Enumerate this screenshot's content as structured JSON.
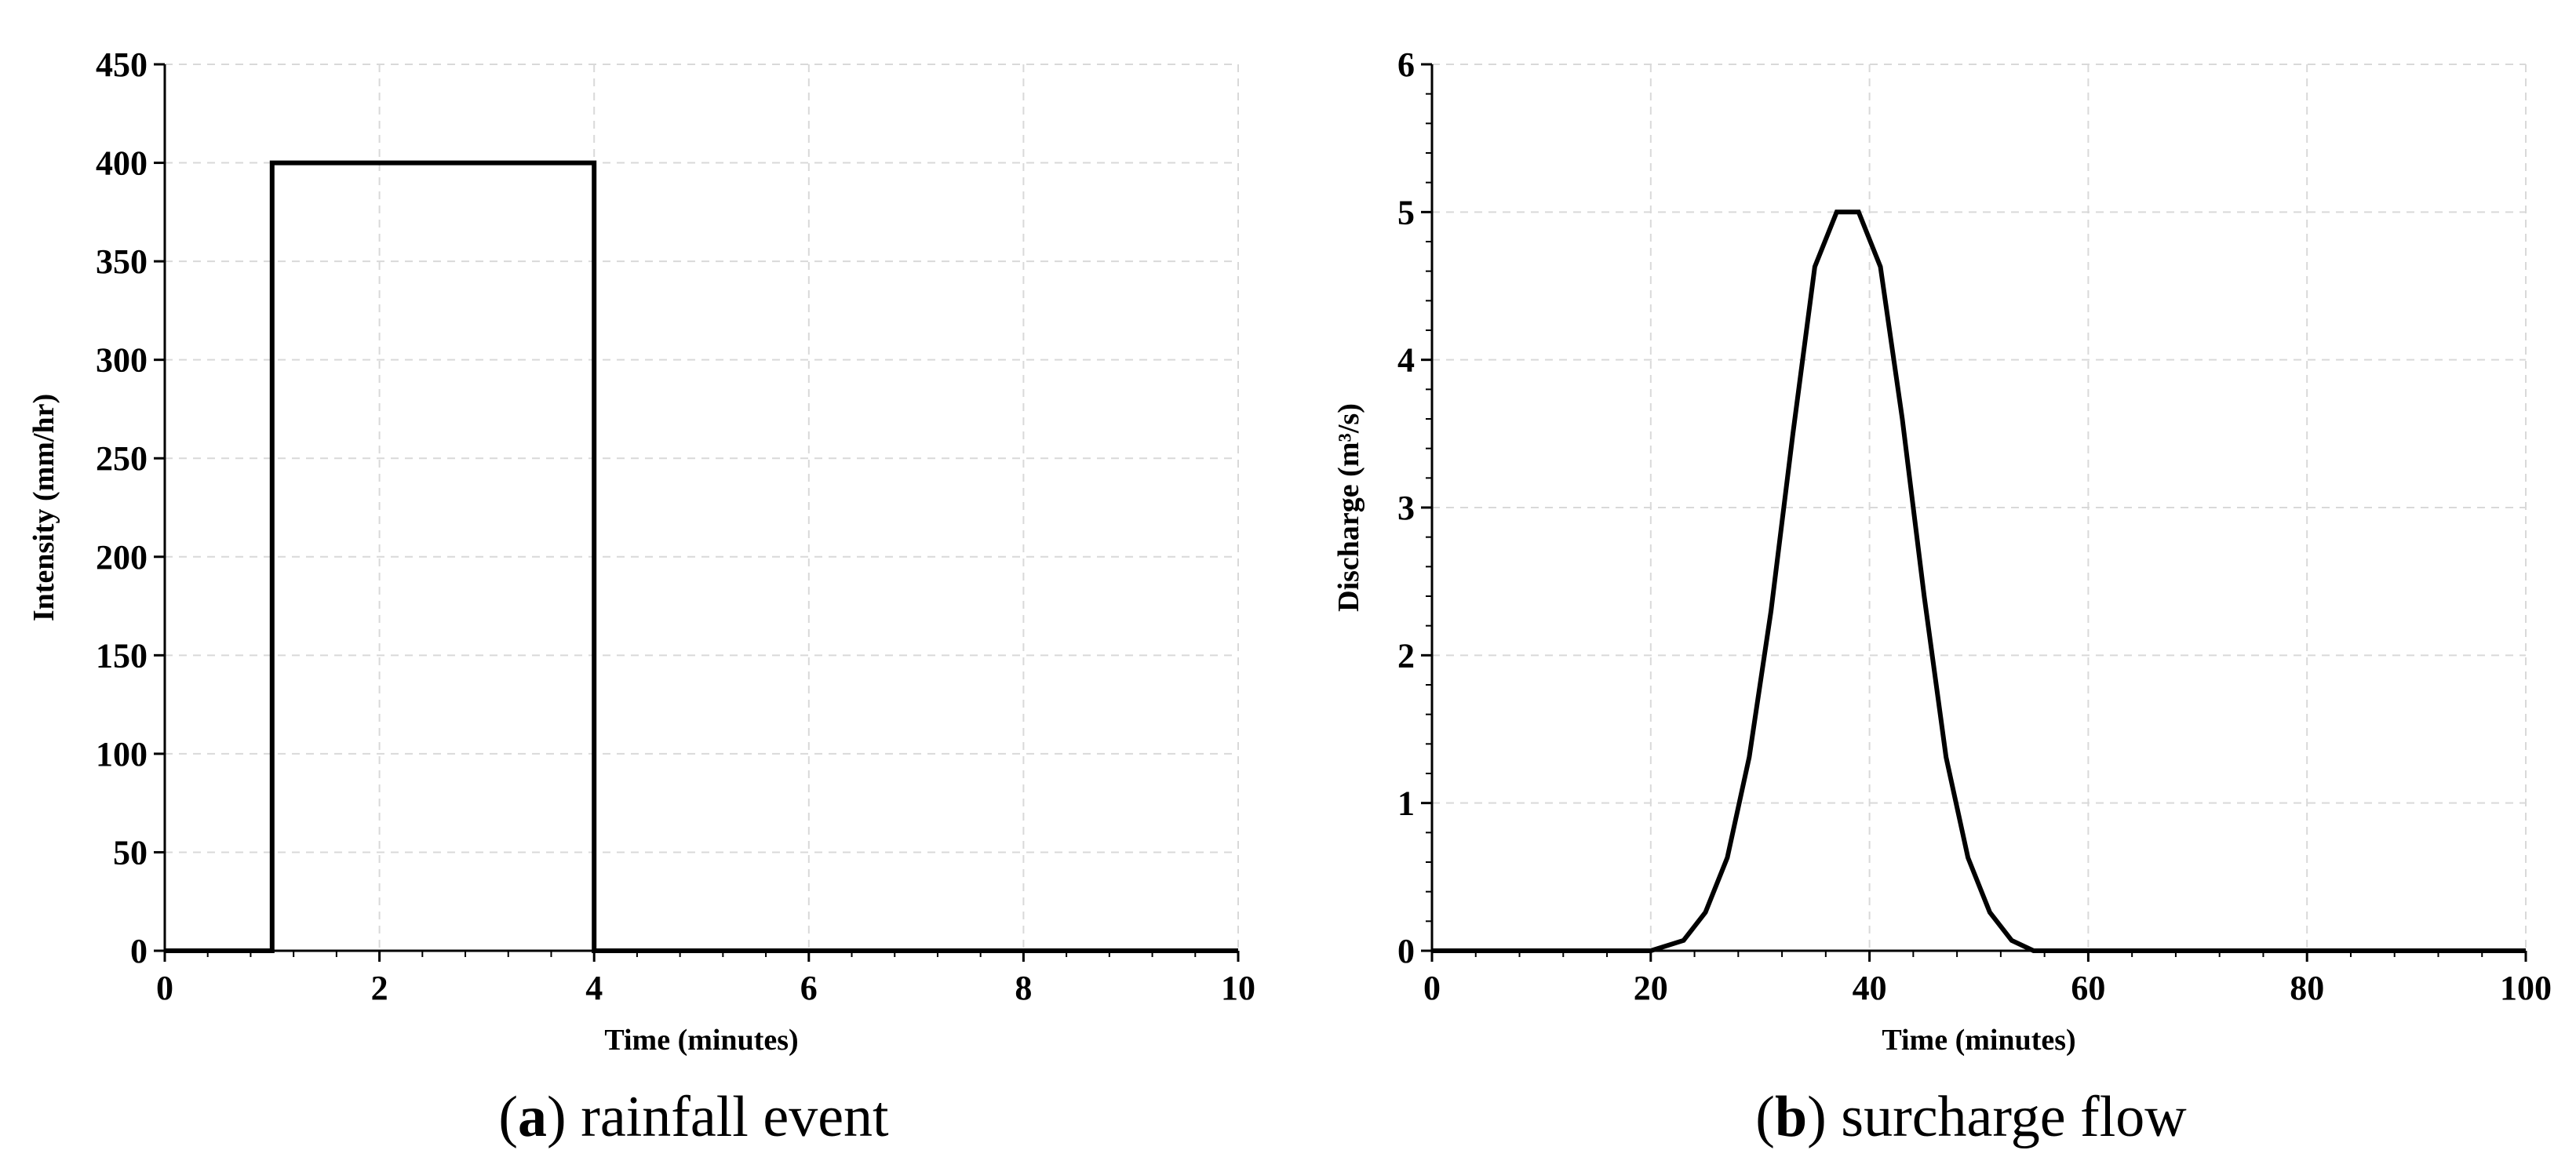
{
  "chart_data": [
    {
      "id": "a",
      "type": "line",
      "caption": {
        "letter": "a",
        "text": "rainfall event"
      },
      "xlabel": "Time (minutes)",
      "ylabel": "Intensity (mm/hr)",
      "xlim": [
        0,
        10
      ],
      "ylim": [
        0,
        450
      ],
      "xticks": [
        0,
        2,
        4,
        6,
        8,
        10
      ],
      "yticks": [
        0,
        50,
        100,
        150,
        200,
        250,
        300,
        350,
        400,
        450
      ],
      "grid": true,
      "series": [
        {
          "x": [
            0,
            1,
            1,
            4,
            4,
            10
          ],
          "y": [
            0,
            0,
            400,
            400,
            0,
            0
          ]
        }
      ]
    },
    {
      "id": "b",
      "type": "line",
      "caption": {
        "letter": "b",
        "text": "surcharge flow"
      },
      "xlabel": "Time (minutes)",
      "ylabel": "Discharge (m³/s)",
      "xlim": [
        0,
        100
      ],
      "ylim": [
        0,
        6
      ],
      "xticks": [
        0,
        20,
        40,
        60,
        80,
        100
      ],
      "yticks": [
        0,
        1,
        2,
        3,
        4,
        5,
        6
      ],
      "grid": true,
      "series": [
        {
          "x": [
            0,
            20,
            23,
            25,
            27,
            29,
            31,
            33,
            35,
            37,
            39,
            41,
            43,
            45,
            47,
            49,
            51,
            53,
            55,
            100
          ],
          "y": [
            0,
            0,
            0.07,
            0.26,
            0.63,
            1.31,
            2.3,
            3.5,
            4.63,
            5.0,
            5.0,
            4.63,
            3.6,
            2.4,
            1.31,
            0.63,
            0.26,
            0.07,
            0,
            0
          ]
        }
      ]
    }
  ]
}
